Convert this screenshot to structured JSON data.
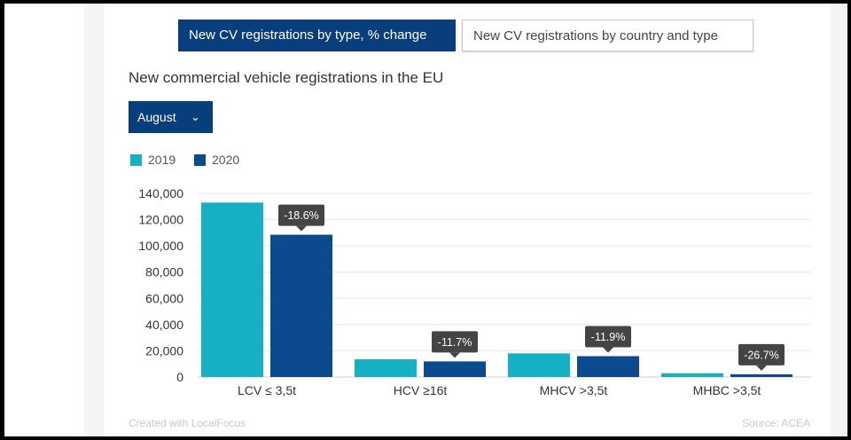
{
  "tabs": [
    {
      "label": "New CV registrations by type, % change",
      "active": true
    },
    {
      "label": "New CV registrations by country and type",
      "active": false
    }
  ],
  "chart_title": "New commercial vehicle registrations in the EU",
  "month_dropdown": {
    "selected": "August",
    "icon": "chevron-down-icon"
  },
  "footer": {
    "credit": "Created with LocalFocus",
    "source": "Source: ACEA"
  },
  "colors": {
    "s2019": "#16b0c4",
    "s2020": "#0b4a8f",
    "tab_active": "#073e7b",
    "annotation": "#444444"
  },
  "chart_data": {
    "type": "bar",
    "title": "New commercial vehicle registrations in the EU",
    "categories": [
      "LCV ≤ 3,5t",
      "HCV ≥16t",
      "MHCV >3,5t",
      "MHBC >3,5t"
    ],
    "series": [
      {
        "name": "2019",
        "values": [
          133000,
          13500,
          18000,
          2900
        ]
      },
      {
        "name": "2020",
        "values": [
          108500,
          11900,
          15900,
          2100
        ]
      }
    ],
    "annotations": [
      "-18.6%",
      "-11.7%",
      "-11.9%",
      "-26.7%"
    ],
    "yticks": [
      0,
      20000,
      40000,
      60000,
      80000,
      100000,
      120000,
      140000
    ],
    "ytick_labels": [
      "0",
      "20,000",
      "40,000",
      "60,000",
      "80,000",
      "100,000",
      "120,000",
      "140,000"
    ],
    "ylim": [
      0,
      140000
    ],
    "grid": true,
    "legend": "top-left",
    "xlabel": "",
    "ylabel": ""
  }
}
